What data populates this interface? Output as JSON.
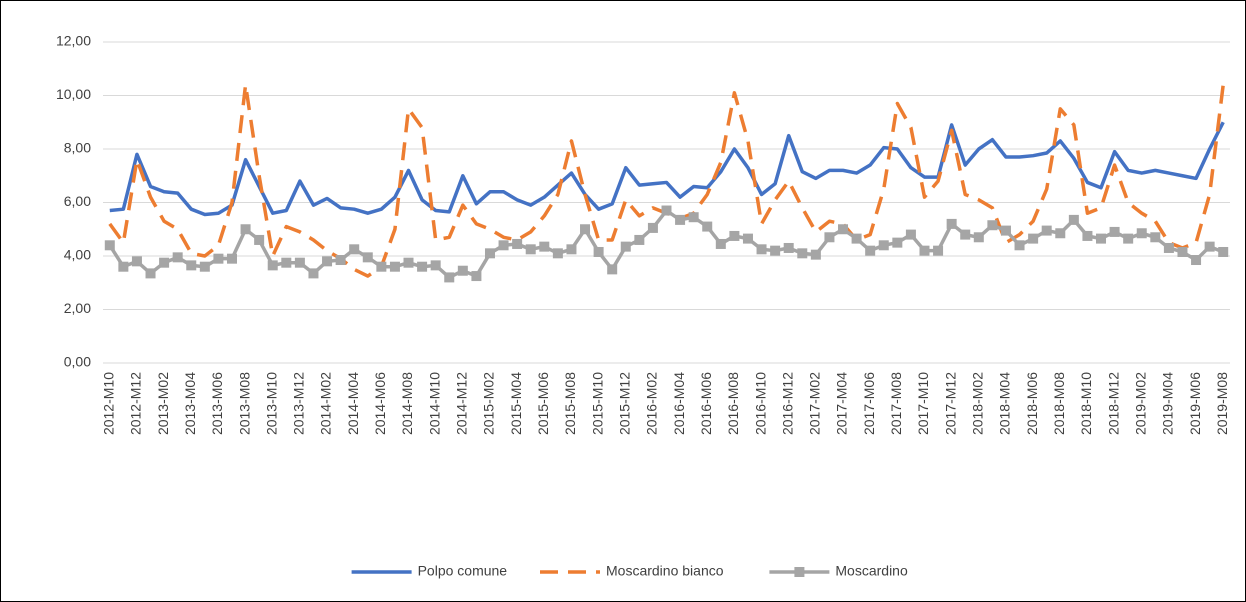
{
  "chart_data": {
    "type": "line",
    "categories": [
      "2012-M10",
      null,
      "2012-M12",
      null,
      "2013-M02",
      null,
      "2013-M04",
      null,
      "2013-M06",
      null,
      "2013-M08",
      null,
      "2013-M10",
      null,
      "2013-M12",
      null,
      "2014-M02",
      null,
      "2014-M04",
      null,
      "2014-M06",
      null,
      "2014-M08",
      null,
      "2014-M10",
      null,
      "2014-M12",
      null,
      "2015-M02",
      null,
      "2015-M04",
      null,
      "2015-M06",
      null,
      "2015-M08",
      null,
      "2015-M10",
      null,
      "2015-M12",
      null,
      "2016-M02",
      null,
      "2016-M04",
      null,
      "2016-M06",
      null,
      "2016-M08",
      null,
      "2016-M10",
      null,
      "2016-M12",
      null,
      "2017-M02",
      null,
      "2017-M04",
      null,
      "2017-M06",
      null,
      "2017-M08",
      null,
      "2017-M10",
      null,
      "2017-M12",
      null,
      "2018-M02",
      null,
      "2018-M04",
      null,
      "2018-M06",
      null,
      "2018-M08",
      null,
      "2018-M10",
      null,
      "2018-M12",
      null,
      "2019-M02",
      null,
      "2019-M04",
      null,
      "2019-M06",
      null,
      "2019-M08"
    ],
    "series": [
      {
        "name": "Polpo comune",
        "color": "#4472c4",
        "line_style": "solid",
        "marker": "none",
        "values": [
          5.7,
          5.75,
          7.8,
          6.6,
          6.4,
          6.35,
          5.75,
          5.55,
          5.6,
          5.9,
          7.6,
          6.6,
          5.6,
          5.7,
          6.8,
          5.9,
          6.15,
          5.8,
          5.75,
          5.6,
          5.75,
          6.2,
          7.2,
          6.1,
          5.7,
          5.65,
          7.0,
          5.95,
          6.4,
          6.4,
          6.1,
          5.9,
          6.2,
          6.65,
          7.1,
          6.3,
          5.75,
          5.95,
          7.3,
          6.65,
          6.7,
          6.75,
          6.2,
          6.6,
          6.55,
          7.15,
          8.0,
          7.3,
          6.3,
          6.7,
          8.5,
          7.15,
          6.9,
          7.2,
          7.2,
          7.1,
          7.4,
          8.05,
          8.0,
          7.3,
          6.95,
          6.95,
          8.9,
          7.4,
          8.0,
          8.35,
          7.7,
          7.7,
          7.75,
          7.85,
          8.3,
          7.65,
          6.75,
          6.55,
          7.9,
          7.2,
          7.1,
          7.2,
          7.1,
          7.0,
          6.9,
          8.0,
          9.0
        ]
      },
      {
        "name": "Moscardino bianco",
        "color": "#ed7d31",
        "line_style": "dashed",
        "marker": "none",
        "values": [
          5.2,
          4.5,
          7.6,
          6.2,
          5.3,
          5.0,
          4.1,
          4.0,
          4.4,
          6.0,
          10.4,
          7.0,
          4.0,
          5.1,
          4.9,
          4.6,
          4.2,
          3.9,
          3.5,
          3.25,
          3.6,
          5.0,
          9.5,
          8.8,
          4.6,
          4.7,
          5.9,
          5.2,
          5.0,
          4.7,
          4.6,
          4.9,
          5.5,
          6.3,
          8.3,
          6.3,
          4.6,
          4.6,
          6.1,
          5.5,
          5.8,
          5.6,
          5.4,
          5.6,
          6.3,
          7.5,
          10.1,
          8.3,
          5.2,
          6.1,
          6.8,
          5.8,
          4.9,
          5.3,
          5.2,
          4.6,
          4.8,
          6.5,
          9.7,
          8.8,
          6.2,
          6.8,
          8.7,
          6.3,
          6.1,
          5.8,
          4.5,
          4.8,
          5.3,
          6.5,
          9.5,
          8.9,
          5.6,
          5.8,
          7.4,
          6.0,
          5.6,
          5.3,
          4.5,
          4.3,
          4.5,
          6.3,
          10.4
        ]
      },
      {
        "name": "Moscardino",
        "color": "#a5a5a5",
        "line_style": "solid",
        "marker": "square",
        "values": [
          4.4,
          3.6,
          3.8,
          3.35,
          3.75,
          3.95,
          3.65,
          3.6,
          3.9,
          3.9,
          5.0,
          4.6,
          3.65,
          3.75,
          3.75,
          3.35,
          3.8,
          3.85,
          4.25,
          3.95,
          3.6,
          3.6,
          3.75,
          3.6,
          3.65,
          3.2,
          3.45,
          3.25,
          4.1,
          4.4,
          4.45,
          4.25,
          4.35,
          4.1,
          4.25,
          5.0,
          4.15,
          3.5,
          4.35,
          4.6,
          5.05,
          5.7,
          5.35,
          5.45,
          5.1,
          4.45,
          4.75,
          4.65,
          4.25,
          4.2,
          4.3,
          4.1,
          4.05,
          4.7,
          5.0,
          4.65,
          4.2,
          4.4,
          4.5,
          4.8,
          4.2,
          4.2,
          5.2,
          4.8,
          4.7,
          5.15,
          4.95,
          4.4,
          4.65,
          4.95,
          4.85,
          5.35,
          4.75,
          4.65,
          4.9,
          4.65,
          4.85,
          4.7,
          4.3,
          4.15,
          3.85,
          4.35,
          4.15
        ]
      }
    ],
    "ylim": [
      0,
      12
    ],
    "yticks": [
      {
        "value": 0,
        "label": "0,00"
      },
      {
        "value": 2,
        "label": "2,00"
      },
      {
        "value": 4,
        "label": "4,00"
      },
      {
        "value": 6,
        "label": "6,00"
      },
      {
        "value": 8,
        "label": "8,00"
      },
      {
        "value": 10,
        "label": "10,00"
      },
      {
        "value": 12,
        "label": "12,00"
      }
    ],
    "grid": true,
    "legend": "bottom"
  }
}
